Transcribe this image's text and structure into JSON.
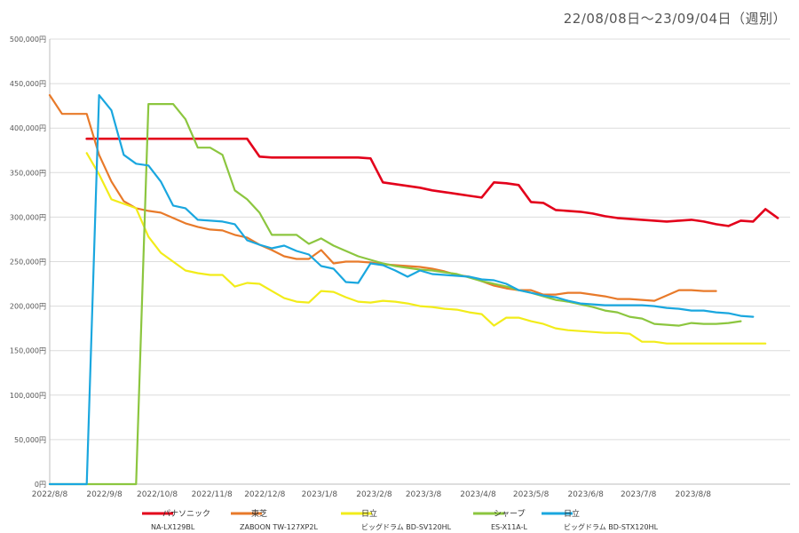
{
  "date_range_label": "22/08/08日～23/09/04日（週別）",
  "chart_data": {
    "type": "line",
    "title": "",
    "xlabel": "",
    "ylabel": "",
    "ylim": [
      0,
      500000
    ],
    "y_ticks": [
      0,
      50000,
      100000,
      150000,
      200000,
      250000,
      300000,
      350000,
      400000,
      450000,
      500000
    ],
    "y_tick_labels": [
      "0円",
      "50,000円",
      "100,000円",
      "150,000円",
      "200,000円",
      "250,000円",
      "300,000円",
      "350,000円",
      "400,000円",
      "450,000円",
      "500,000円"
    ],
    "x_tick_labels": [
      "2022/8/8",
      "2022/9/8",
      "2022/10/8",
      "2022/11/8",
      "2022/12/8",
      "2023/1/8",
      "2023/2/8",
      "2023/3/8",
      "2023/4/8",
      "2023/5/8",
      "2023/6/8",
      "2023/7/8",
      "2023/8/8"
    ],
    "x_tick_positions": [
      0,
      4.43,
      8.71,
      13.14,
      17.43,
      21.86,
      26.29,
      30.29,
      34.71,
      39.0,
      43.43,
      47.71,
      52.14
    ],
    "x_range": [
      0,
      60
    ],
    "grid": true,
    "legend_position": "bottom",
    "series": [
      {
        "name": "パナソニック",
        "model": "NA-LX129BL",
        "color": "#e3001b",
        "values": [
          null,
          null,
          null,
          388000,
          388000,
          388000,
          388000,
          388000,
          388000,
          388000,
          388000,
          388000,
          388000,
          388000,
          388000,
          388000,
          388000,
          368000,
          367000,
          367000,
          367000,
          367000,
          367000,
          367000,
          367000,
          367000,
          366000,
          339000,
          337000,
          335000,
          333000,
          330000,
          328000,
          326000,
          324000,
          322000,
          339000,
          338000,
          336000,
          317000,
          316000,
          308000,
          307000,
          306000,
          304000,
          301000,
          299000,
          298000,
          297000,
          296000,
          295000,
          296000,
          297000,
          295000,
          292000,
          290000,
          296000,
          295000,
          309000,
          299000
        ]
      },
      {
        "name": "東芝",
        "model": "ZABOON TW-127XP2L",
        "color": "#e87a2a",
        "values": [
          437000,
          416000,
          416000,
          416000,
          370000,
          340000,
          318000,
          310000,
          307000,
          305000,
          299000,
          293000,
          289000,
          286000,
          285000,
          280000,
          277000,
          269000,
          263000,
          256000,
          253000,
          253000,
          263000,
          248000,
          250000,
          250000,
          249000,
          247000,
          246000,
          245000,
          244000,
          242000,
          239000,
          235000,
          233000,
          228000,
          223000,
          220000,
          218000,
          218000,
          213000,
          213000,
          215000,
          215000,
          213000,
          211000,
          208000,
          208000,
          207000,
          206000,
          212000,
          218000,
          218000,
          217000,
          217000
        ]
      },
      {
        "name": "日立",
        "model": "ビッグドラム BD-SV120HL",
        "color": "#f2ec1a",
        "values": [
          null,
          null,
          null,
          372000,
          348000,
          320000,
          315000,
          310000,
          278000,
          260000,
          250000,
          240000,
          237000,
          235000,
          235000,
          222000,
          226000,
          225000,
          217000,
          209000,
          205000,
          204000,
          217000,
          216000,
          210000,
          205000,
          204000,
          206000,
          205000,
          203000,
          200000,
          199000,
          197000,
          196000,
          193000,
          191000,
          178000,
          187000,
          187000,
          183000,
          180000,
          175000,
          173000,
          172000,
          171000,
          170000,
          170000,
          169000,
          160000,
          160000,
          158000,
          158000,
          158000,
          158000,
          158000,
          158000,
          158000,
          158000,
          158000
        ]
      },
      {
        "name": "シャープ",
        "model": "ES-X11A-L",
        "color": "#8cc63f",
        "values": [
          0,
          0,
          0,
          0,
          0,
          0,
          0,
          0,
          427000,
          427000,
          427000,
          410000,
          378000,
          378000,
          370000,
          330000,
          320000,
          305000,
          280000,
          280000,
          280000,
          270000,
          276000,
          268000,
          262000,
          256000,
          252000,
          248000,
          245000,
          243000,
          241000,
          240000,
          238000,
          236000,
          232000,
          228000,
          225000,
          222000,
          218000,
          215000,
          211000,
          207000,
          205000,
          202000,
          199000,
          195000,
          193000,
          188000,
          186000,
          180000,
          179000,
          178000,
          181000,
          180000,
          180000,
          181000,
          183000
        ]
      },
      {
        "name": "日立",
        "model": "ビッグドラム BD-STX120HL",
        "color": "#1aa7df",
        "values": [
          0,
          0,
          0,
          0,
          437000,
          420000,
          370000,
          360000,
          358000,
          340000,
          313000,
          310000,
          297000,
          296000,
          295000,
          292000,
          274000,
          269000,
          265000,
          268000,
          262000,
          258000,
          245000,
          242000,
          227000,
          226000,
          248000,
          246000,
          240000,
          233000,
          240000,
          236000,
          235000,
          234000,
          233000,
          230000,
          229000,
          225000,
          218000,
          215000,
          212000,
          210000,
          206000,
          203000,
          202000,
          201000,
          201000,
          201000,
          201000,
          200000,
          198000,
          197000,
          195000,
          195000,
          193000,
          192000,
          189000,
          188000
        ]
      }
    ]
  }
}
